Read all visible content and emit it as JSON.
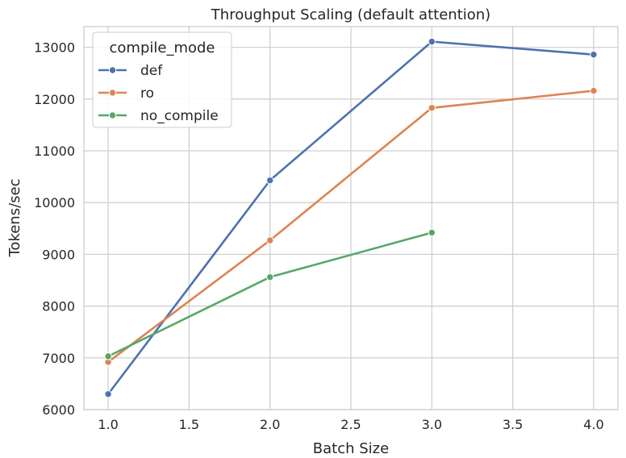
{
  "chart_data": {
    "type": "line",
    "title": "Throughput Scaling (default attention)",
    "xlabel": "Batch Size",
    "ylabel": "Tokens/sec",
    "xlim": [
      0.85,
      4.15
    ],
    "ylim": [
      6000,
      13400
    ],
    "xticks": [
      1.0,
      1.5,
      2.0,
      2.5,
      3.0,
      3.5,
      4.0
    ],
    "xtick_labels": [
      "1.0",
      "1.5",
      "2.0",
      "2.5",
      "3.0",
      "3.5",
      "4.0"
    ],
    "yticks": [
      6000,
      7000,
      8000,
      9000,
      10000,
      11000,
      12000,
      13000
    ],
    "ytick_labels": [
      "6000",
      "7000",
      "8000",
      "9000",
      "10000",
      "11000",
      "12000",
      "13000"
    ],
    "grid": true,
    "legend": {
      "title": "compile_mode",
      "placement": "upper-left"
    },
    "series": [
      {
        "name": "def",
        "color": "#4c72b0",
        "x": [
          1,
          2,
          3,
          4
        ],
        "y": [
          6300,
          10430,
          13110,
          12860
        ]
      },
      {
        "name": "ro",
        "color": "#dd8452",
        "x": [
          1,
          2,
          3,
          4
        ],
        "y": [
          6920,
          9270,
          11830,
          12160
        ]
      },
      {
        "name": "no_compile",
        "color": "#55a868",
        "x": [
          1,
          2,
          3
        ],
        "y": [
          7030,
          8560,
          9420
        ]
      }
    ]
  }
}
